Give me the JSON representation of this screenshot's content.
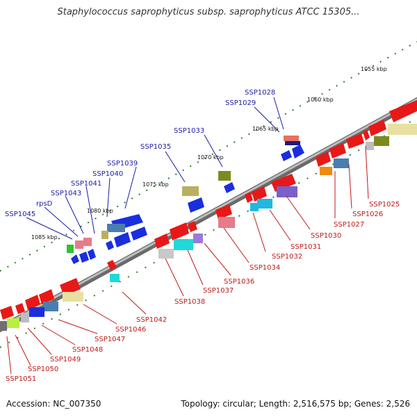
{
  "title": "Staphylococcus saprophyticus subsp. saprophyticus ATCC 15305...",
  "footer": {
    "accession": "Accession: NC_007350",
    "topology": "Topology: circular; Length: 2,516,575 bp; Genes: 2,526"
  },
  "colors": {
    "backbone": "#808080",
    "forward_label": "#1a1aa6",
    "reverse_label": "#c01818",
    "tick": "#2e7d2e"
  },
  "kbp_labels": [
    "1055 kbp",
    "1060 kbp",
    "1065 kbp",
    "1070 kbp",
    "1075 kbp",
    "1080 kbp",
    "1085 kbp"
  ],
  "forward_labels": [
    "SSP1028",
    "SSP1029",
    "SSP1033",
    "SSP1035",
    "SSP1039",
    "SSP1040",
    "SSP1041",
    "SSP1043",
    "rpsD",
    "SSP1045"
  ],
  "reverse_labels": [
    "SSP1025",
    "SSP1026",
    "SSP1027",
    "SSP1030",
    "SSP1031",
    "SSP1032",
    "SSP1034",
    "SSP1036",
    "SSP1037",
    "SSP1038",
    "SSP1042",
    "SSP1046",
    "SSP1047",
    "SSP1048",
    "SSP1049",
    "SSP1050",
    "SSP1051"
  ]
}
